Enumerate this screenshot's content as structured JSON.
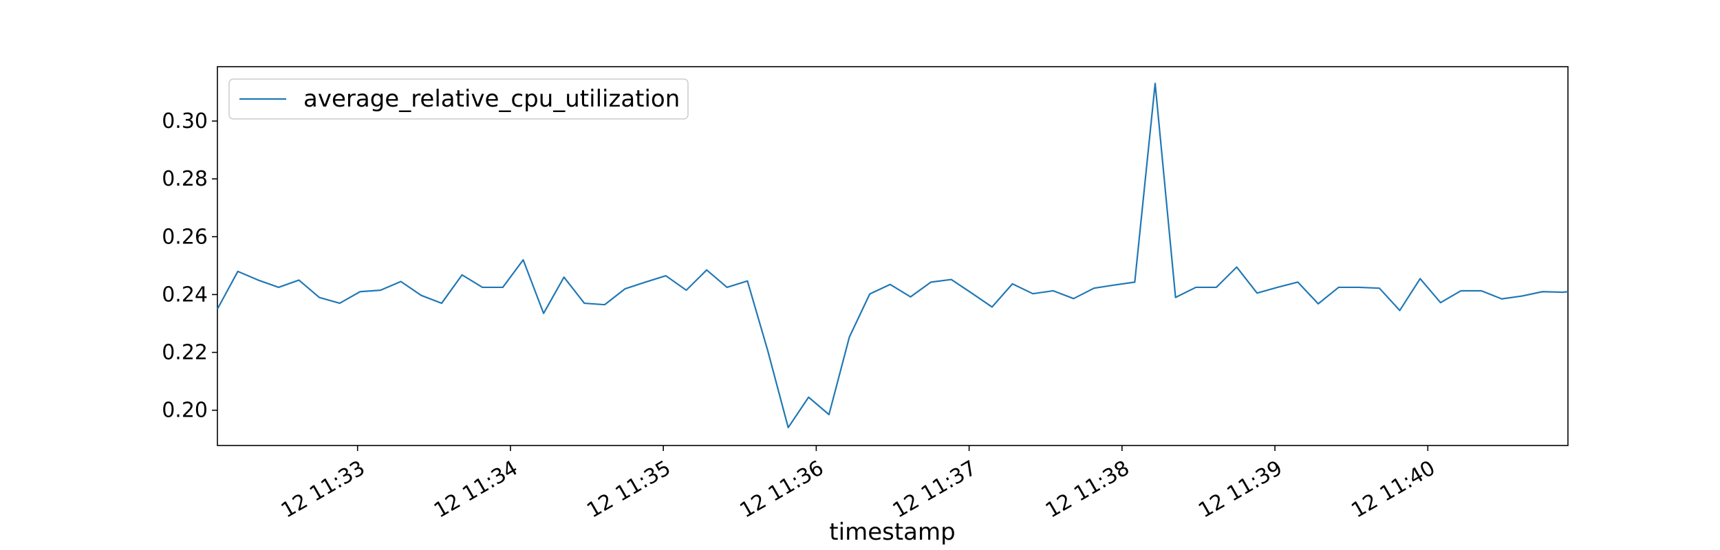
{
  "chart_data": {
    "type": "line",
    "title": "",
    "xlabel": "timestamp",
    "ylabel": "",
    "legend": {
      "placement": "upper-left"
    },
    "grid": false,
    "ylim": [
      0.1878,
      0.3188
    ],
    "xlim_minutes": [
      "11:32:05",
      "11:40:55"
    ],
    "x_tick_labels": [
      "12 11:33",
      "12 11:34",
      "12 11:35",
      "12 11:36",
      "12 11:37",
      "12 11:38",
      "12 11:39",
      "12 11:40"
    ],
    "y_ticks": [
      0.2,
      0.22,
      0.24,
      0.26,
      0.28,
      0.3
    ],
    "y_tick_labels": [
      "0.20",
      "0.22",
      "0.24",
      "0.26",
      "0.28",
      "0.30"
    ],
    "series": [
      {
        "name": "average_relative_cpu_utilization",
        "color": "#1f77b4",
        "x": [
          "11:32:05",
          "11:32:13",
          "11:32:21",
          "11:32:29",
          "11:32:37",
          "11:32:45",
          "11:32:53",
          "11:33:01",
          "11:33:09",
          "11:33:17",
          "11:33:25",
          "11:33:33",
          "11:33:41",
          "11:33:49",
          "11:33:57",
          "11:34:05",
          "11:34:13",
          "11:34:21",
          "11:34:29",
          "11:34:37",
          "11:34:45",
          "11:34:53",
          "11:35:01",
          "11:35:09",
          "11:35:17",
          "11:35:25",
          "11:35:33",
          "11:35:41",
          "11:35:49",
          "11:35:57",
          "11:36:05",
          "11:36:13",
          "11:36:21",
          "11:36:29",
          "11:36:37",
          "11:36:45",
          "11:36:53",
          "11:37:01",
          "11:37:09",
          "11:37:17",
          "11:37:25",
          "11:37:33",
          "11:37:41",
          "11:37:49",
          "11:37:57",
          "11:38:05",
          "11:38:13",
          "11:38:21",
          "11:38:29",
          "11:38:37",
          "11:38:45",
          "11:38:53",
          "11:39:01",
          "11:39:09",
          "11:39:17",
          "11:39:25",
          "11:39:33",
          "11:39:41",
          "11:39:49",
          "11:39:57",
          "11:40:05",
          "11:40:13",
          "11:40:21",
          "11:40:29",
          "11:40:37",
          "11:40:45",
          "11:40:53",
          "11:40:55"
        ],
        "values": [
          0.235,
          0.248,
          0.245,
          0.2425,
          0.245,
          0.239,
          0.237,
          0.241,
          0.2415,
          0.2445,
          0.2397,
          0.237,
          0.2468,
          0.2425,
          0.2425,
          0.252,
          0.2335,
          0.246,
          0.237,
          0.2365,
          0.242,
          0.2443,
          0.2465,
          0.2415,
          0.2485,
          0.2425,
          0.2447,
          0.2205,
          0.194,
          0.2045,
          0.1985,
          0.2253,
          0.2402,
          0.2435,
          0.2392,
          0.2443,
          0.2452,
          0.2405,
          0.2357,
          0.2437,
          0.2403,
          0.2413,
          0.2386,
          0.2422,
          0.2433,
          0.2443,
          0.313,
          0.239,
          0.2425,
          0.2425,
          0.2495,
          0.2405,
          0.2425,
          0.2443,
          0.2368,
          0.2425,
          0.2425,
          0.2422,
          0.2345,
          0.2455,
          0.2372,
          0.2413,
          0.2413,
          0.2385,
          0.2395,
          0.241,
          0.2408,
          0.241
        ]
      }
    ]
  }
}
